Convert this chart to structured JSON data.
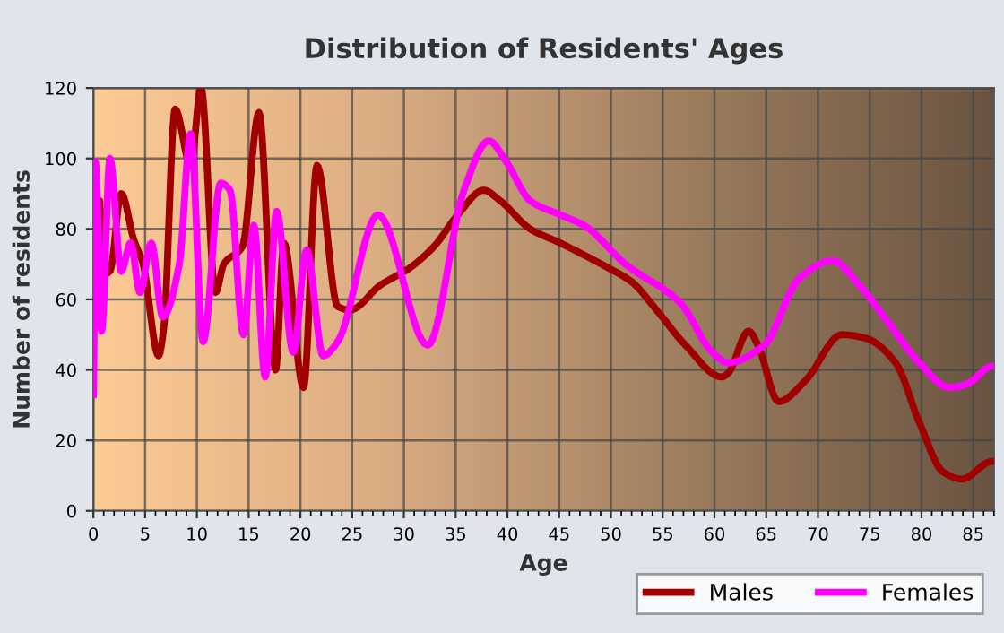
{
  "chart_data": {
    "type": "line",
    "title": "Distribution of Residents' Ages",
    "xlabel": "Age",
    "ylabel": "Number of residents",
    "xlim": [
      0,
      87
    ],
    "ylim": [
      0,
      120
    ],
    "xticks": [
      0,
      5,
      10,
      15,
      20,
      25,
      30,
      35,
      40,
      45,
      50,
      55,
      60,
      65,
      70,
      75,
      80,
      85
    ],
    "yticks": [
      0,
      20,
      40,
      60,
      80,
      100,
      120
    ],
    "grid": true,
    "legend": "bottom",
    "marker": "none",
    "line_style": "solid",
    "series": [
      {
        "name": "Males",
        "color": "#a00000",
        "x": [
          0,
          0.6,
          0.9,
          1.6,
          2.7,
          3.9,
          4.8,
          6.3,
          6.8,
          7.9,
          9.4,
          10.4,
          11.8,
          12.6,
          14.4,
          16.0,
          17.6,
          18.4,
          20.3,
          21.6,
          23.6,
          24.8,
          27.7,
          30.6,
          32.9,
          35.2,
          37.7,
          39.3,
          42.2,
          45.1,
          49.7,
          52.0,
          54.4,
          57.2,
          60.7,
          61.3,
          63.3,
          64.2,
          66.2,
          68.8,
          72.3,
          74.6,
          77.5,
          79.8,
          82.1,
          83.9,
          86.8
        ],
        "values": [
          66,
          88,
          67,
          68,
          90,
          77,
          70,
          44,
          52,
          114,
          98,
          120,
          62,
          70,
          75,
          113,
          40,
          76,
          35,
          98,
          58,
          57,
          64,
          69,
          75,
          84,
          91,
          88,
          80,
          76,
          69,
          65,
          57,
          47,
          38,
          39,
          51,
          47,
          31,
          37,
          50,
          49,
          42,
          25,
          11,
          9,
          14
        ]
      },
      {
        "name": "Females",
        "color": "#ff00ff",
        "x": [
          0,
          0.2,
          0.8,
          1.6,
          2.7,
          3.6,
          4.5,
          5.6,
          6.7,
          8.3,
          9.4,
          10.6,
          12.3,
          13.2,
          14.5,
          15.5,
          16.6,
          17.7,
          19.3,
          20.6,
          22.2,
          23.6,
          27.5,
          32.3,
          35.8,
          38.2,
          39.9,
          42.2,
          45.1,
          47.4,
          51.4,
          56.7,
          59.8,
          61.3,
          64.8,
          68.2,
          71.4,
          74.0,
          76.9,
          79.8,
          82.7,
          84.4,
          86.8
        ],
        "values": [
          33,
          99,
          51,
          100,
          68,
          76,
          62,
          76,
          55,
          70,
          107,
          48,
          93,
          91,
          50,
          81,
          38,
          85,
          45,
          74,
          44,
          48,
          84,
          47,
          91,
          105,
          99,
          88,
          84,
          81,
          70,
          59,
          45,
          42,
          47,
          66,
          71,
          64,
          53,
          42,
          35,
          36,
          41
        ]
      }
    ]
  }
}
